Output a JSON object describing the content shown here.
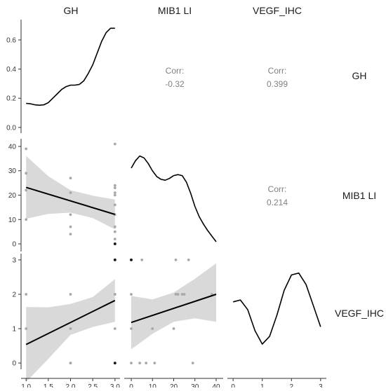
{
  "chart_data": {
    "type": "scatter-matrix",
    "variables": [
      "GH",
      "MIB1 LI",
      "VEGF_IHC"
    ],
    "strip_labels": {
      "top": [
        "GH",
        "MIB1 LI",
        "VEGF_IHC"
      ],
      "right": [
        "GH",
        "MIB1 LI",
        "VEGF_IHC"
      ]
    },
    "axes": {
      "GH": {
        "lim": [
          0.95,
          3.05
        ],
        "ticks": [
          1.0,
          1.5,
          2.0,
          2.5,
          3.0
        ],
        "tick_labels": [
          "1.0",
          "1.5",
          "2.0",
          "2.5",
          "3.0"
        ]
      },
      "MIB1 LI": {
        "lim": [
          -2,
          42
        ],
        "ticks": [
          0,
          10,
          20,
          30,
          40
        ],
        "tick_labels": [
          "0",
          "10",
          "20",
          "30",
          "40"
        ]
      },
      "VEGF_IHC": {
        "lim": [
          -0.1,
          3.1
        ],
        "ticks": [
          0,
          1,
          2,
          3
        ],
        "tick_labels": [
          "0",
          "1",
          "2",
          "3"
        ]
      },
      "density_gh": {
        "lim": [
          -0.02,
          0.72
        ],
        "ticks": [
          0.0,
          0.2,
          0.4,
          0.6
        ],
        "tick_labels": [
          "0.0",
          "0.2",
          "0.4",
          "0.6"
        ]
      }
    },
    "correlations": [
      {
        "row": "GH",
        "col": "MIB1 LI",
        "label": "Corr:",
        "value": "-0.32"
      },
      {
        "row": "GH",
        "col": "VEGF_IHC",
        "label": "Corr:",
        "value": "0.399"
      },
      {
        "row": "MIB1 LI",
        "col": "VEGF_IHC",
        "label": "Corr:",
        "value": "0.214"
      }
    ],
    "densities": [
      {
        "variable": "GH",
        "x": [
          1.0,
          1.1,
          1.2,
          1.3,
          1.4,
          1.5,
          1.6,
          1.7,
          1.8,
          1.9,
          2.0,
          2.1,
          2.2,
          2.3,
          2.4,
          2.5,
          2.6,
          2.7,
          2.8,
          2.9,
          3.0
        ],
        "y": [
          0.165,
          0.162,
          0.155,
          0.152,
          0.155,
          0.17,
          0.2,
          0.23,
          0.26,
          0.28,
          0.29,
          0.29,
          0.295,
          0.32,
          0.37,
          0.43,
          0.51,
          0.59,
          0.65,
          0.68,
          0.68
        ]
      },
      {
        "variable": "MIB1 LI",
        "x": [
          0,
          2,
          4,
          6,
          8,
          10,
          12,
          14,
          16,
          18,
          20,
          22,
          24,
          26,
          28,
          30,
          32,
          34,
          36,
          38,
          40
        ],
        "y": [
          0.79,
          0.87,
          0.92,
          0.9,
          0.84,
          0.76,
          0.7,
          0.67,
          0.66,
          0.68,
          0.71,
          0.72,
          0.71,
          0.64,
          0.52,
          0.38,
          0.27,
          0.19,
          0.12,
          0.06,
          0.0
        ]
      },
      {
        "variable": "VEGF_IHC",
        "x": [
          0,
          0.25,
          0.5,
          0.75,
          1.0,
          1.25,
          1.5,
          1.75,
          2.0,
          2.25,
          2.5,
          2.75,
          3.0
        ],
        "y": [
          0.6,
          0.62,
          0.52,
          0.3,
          0.16,
          0.24,
          0.46,
          0.72,
          0.88,
          0.9,
          0.78,
          0.56,
          0.34
        ]
      }
    ],
    "scatter": [
      {
        "x": "GH",
        "y": "MIB1 LI",
        "points": [
          [
            1,
            39
          ],
          [
            1,
            29
          ],
          [
            1,
            22
          ],
          [
            1,
            10
          ],
          [
            2,
            27
          ],
          [
            2,
            21
          ],
          [
            2,
            12
          ],
          [
            2,
            7
          ],
          [
            2,
            4
          ],
          [
            3,
            41
          ],
          [
            3,
            24
          ],
          [
            3,
            23
          ],
          [
            3,
            21
          ],
          [
            3,
            20
          ],
          [
            3,
            16
          ],
          [
            3,
            12
          ],
          [
            3,
            7
          ],
          [
            3,
            5
          ],
          [
            3,
            2
          ],
          [
            3,
            0
          ],
          [
            3,
            0
          ]
        ],
        "fit": {
          "x": [
            1,
            3
          ],
          "y": [
            23.2,
            12.1
          ]
        },
        "band": {
          "x": [
            1.0,
            1.5,
            2.0,
            2.5,
            3.0
          ],
          "lower": [
            10.3,
            12.3,
            12.8,
            10.6,
            6.0
          ],
          "upper": [
            36.1,
            27.8,
            22.0,
            19.8,
            18.2
          ]
        }
      },
      {
        "x": "GH",
        "y": "VEGF_IHC",
        "points": [
          [
            1,
            2
          ],
          [
            1,
            1
          ],
          [
            2,
            2
          ],
          [
            2,
            1
          ],
          [
            2,
            0
          ],
          [
            2,
            0
          ],
          [
            3,
            3
          ],
          [
            3,
            3
          ],
          [
            3,
            2
          ],
          [
            3,
            2
          ],
          [
            3,
            1
          ],
          [
            3,
            0
          ],
          [
            3,
            0
          ]
        ],
        "fit": {
          "x": [
            1,
            3
          ],
          "y": [
            0.54,
            1.82
          ]
        },
        "band": {
          "x": [
            1.0,
            1.5,
            2.0,
            2.5,
            3.0
          ],
          "lower": [
            -0.55,
            0.12,
            0.82,
            1.05,
            1.2
          ],
          "upper": [
            1.63,
            1.62,
            1.72,
            1.92,
            2.44
          ]
        }
      },
      {
        "x": "MIB1 LI",
        "y": "VEGF_IHC",
        "points": [
          [
            0,
            3
          ],
          [
            0,
            3
          ],
          [
            5,
            3
          ],
          [
            21,
            3
          ],
          [
            27,
            3
          ],
          [
            0,
            2
          ],
          [
            21,
            2
          ],
          [
            22,
            2
          ],
          [
            24,
            2
          ],
          [
            25,
            2
          ],
          [
            38,
            2
          ],
          [
            0,
            1
          ],
          [
            10,
            1
          ],
          [
            20,
            1
          ],
          [
            0,
            0
          ],
          [
            4,
            0
          ],
          [
            7,
            0
          ],
          [
            11,
            0
          ],
          [
            29,
            0
          ]
        ],
        "fit": {
          "x": [
            0,
            40
          ],
          "y": [
            1.18,
            2.0
          ]
        },
        "band": {
          "x": [
            0,
            10,
            20,
            30,
            40
          ],
          "lower": [
            0.4,
            0.85,
            1.2,
            1.3,
            1.2
          ],
          "upper": [
            1.95,
            1.85,
            2.05,
            2.45,
            2.9
          ]
        }
      }
    ],
    "style": {
      "line": "#000000",
      "band": "#d9d9d9",
      "point": "#a8a8a8",
      "point_dark": "#1a1a1a",
      "label": "#808080",
      "axis": "#333333"
    }
  }
}
